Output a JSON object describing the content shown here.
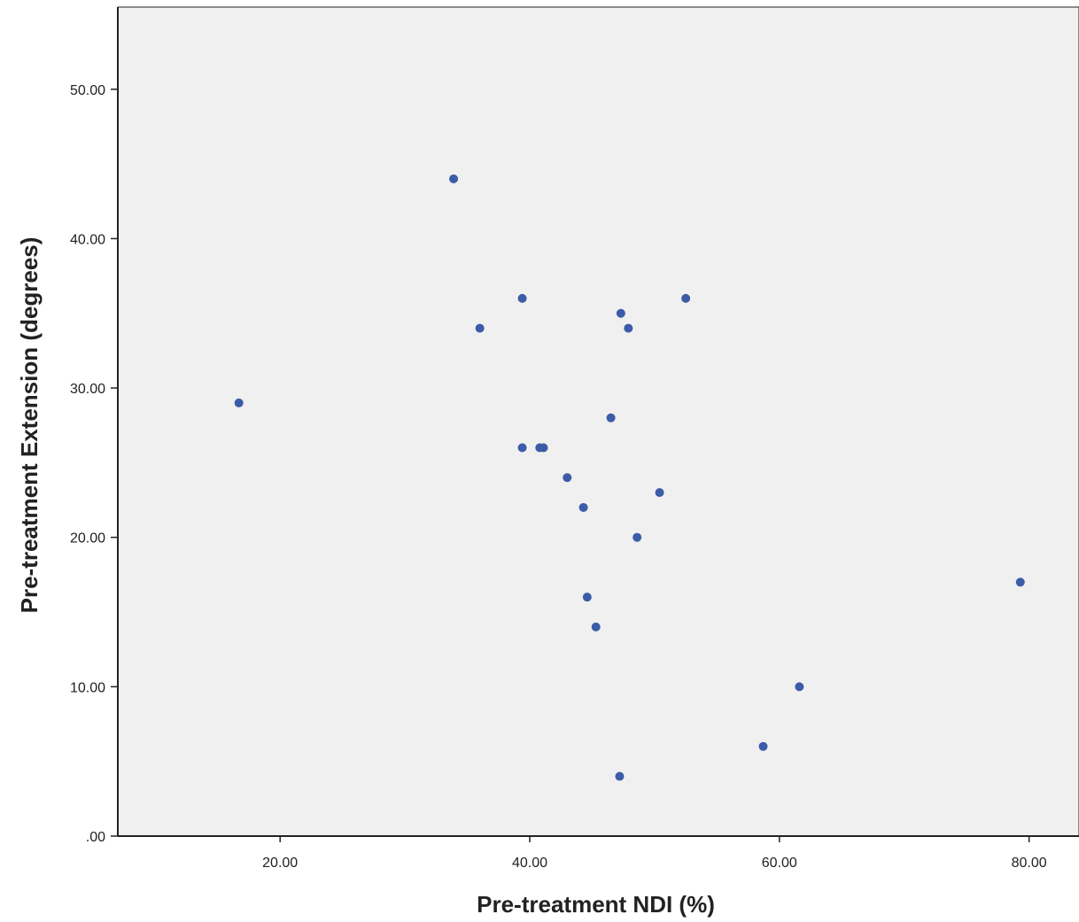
{
  "chart_data": {
    "type": "scatter",
    "title": "",
    "xlabel": "Pre-treatment NDI (%)",
    "ylabel": "Pre-treatment Extension (degrees)",
    "xlim": [
      7,
      84
    ],
    "ylim": [
      0,
      55.5
    ],
    "x_ticks": [
      20,
      40,
      60,
      80
    ],
    "x_tick_labels": [
      "20.00",
      "40.00",
      "60.00",
      "80.00"
    ],
    "y_ticks": [
      0,
      10,
      20,
      30,
      40,
      50
    ],
    "y_tick_labels": [
      ".00",
      "10.00",
      "20.00",
      "30.00",
      "40.00",
      "50.00"
    ],
    "grid": false,
    "colors": {
      "plot_background": "#f0f0f0",
      "marker": "#3c5ba8",
      "axis": "#222222"
    },
    "series": [
      {
        "points": [
          {
            "x": 16.7,
            "y": 29
          },
          {
            "x": 33.9,
            "y": 44
          },
          {
            "x": 36.0,
            "y": 34
          },
          {
            "x": 39.4,
            "y": 36
          },
          {
            "x": 39.4,
            "y": 26
          },
          {
            "x": 40.8,
            "y": 26
          },
          {
            "x": 41.1,
            "y": 26
          },
          {
            "x": 43.0,
            "y": 24
          },
          {
            "x": 44.3,
            "y": 22
          },
          {
            "x": 44.6,
            "y": 16
          },
          {
            "x": 45.3,
            "y": 14
          },
          {
            "x": 46.5,
            "y": 28
          },
          {
            "x": 47.2,
            "y": 4
          },
          {
            "x": 47.3,
            "y": 35
          },
          {
            "x": 47.9,
            "y": 34
          },
          {
            "x": 48.6,
            "y": 20
          },
          {
            "x": 50.4,
            "y": 23
          },
          {
            "x": 52.5,
            "y": 36
          },
          {
            "x": 58.7,
            "y": 6
          },
          {
            "x": 61.6,
            "y": 10
          },
          {
            "x": 79.3,
            "y": 17
          }
        ]
      }
    ]
  }
}
